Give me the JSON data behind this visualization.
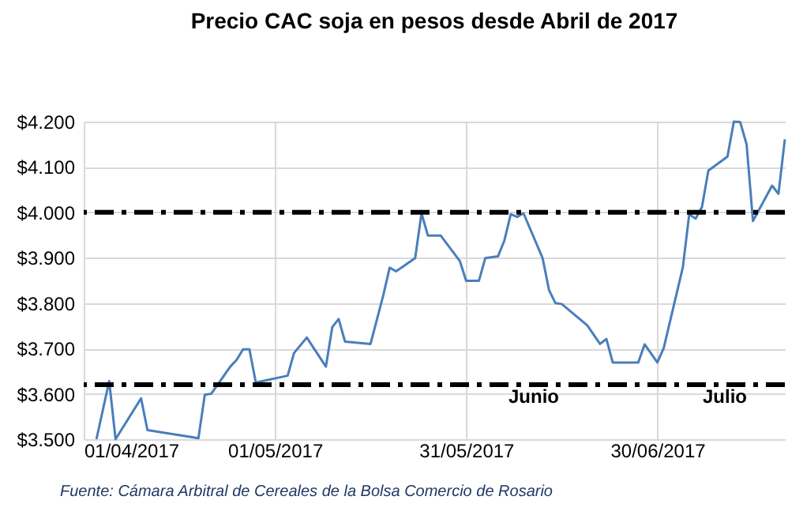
{
  "chart_data": {
    "type": "line",
    "title": "Precio CAC soja en pesos desde Abril de 2017",
    "x": [
      "2017-04-03",
      "2017-04-05",
      "2017-04-06",
      "2017-04-10",
      "2017-04-11",
      "2017-04-19",
      "2017-04-20",
      "2017-04-21",
      "2017-04-24",
      "2017-04-25",
      "2017-04-26",
      "2017-04-27",
      "2017-04-28",
      "2017-05-03",
      "2017-05-04",
      "2017-05-06",
      "2017-05-09",
      "2017-05-10",
      "2017-05-11",
      "2017-05-12",
      "2017-05-16",
      "2017-05-18",
      "2017-05-19",
      "2017-05-20",
      "2017-05-23",
      "2017-05-24",
      "2017-05-25",
      "2017-05-27",
      "2017-05-30",
      "2017-05-31",
      "2017-06-02",
      "2017-06-03",
      "2017-06-05",
      "2017-06-06",
      "2017-06-07",
      "2017-06-08",
      "2017-06-09",
      "2017-06-12",
      "2017-06-13",
      "2017-06-14",
      "2017-06-15",
      "2017-06-19",
      "2017-06-21",
      "2017-06-22",
      "2017-06-23",
      "2017-06-27",
      "2017-06-28",
      "2017-06-30",
      "2017-07-01",
      "2017-07-04",
      "2017-07-05",
      "2017-07-06",
      "2017-07-07",
      "2017-07-08",
      "2017-07-11",
      "2017-07-12",
      "2017-07-13",
      "2017-07-14",
      "2017-07-15",
      "2017-07-18",
      "2017-07-19",
      "2017-07-20"
    ],
    "series": [
      {
        "color": "#4a7ebb",
        "values": [
          3500,
          3628,
          3500,
          3590,
          3520,
          3502,
          3598,
          3600,
          3660,
          3675,
          3698,
          3698,
          3625,
          3640,
          3690,
          3724,
          3660,
          3747,
          3765,
          3715,
          3710,
          3817,
          3878,
          3870,
          3899,
          3998,
          3949,
          3949,
          3893,
          3849,
          3849,
          3899,
          3903,
          3938,
          3996,
          3990,
          3998,
          3899,
          3829,
          3800,
          3798,
          3751,
          3710,
          3721,
          3669,
          3669,
          3709,
          3669,
          3701,
          3879,
          3996,
          3986,
          4012,
          4092,
          4123,
          4200,
          4199,
          4150,
          3981,
          4059,
          4041,
          4161
        ]
      }
    ],
    "xlim": [
      "2017-04-01",
      "2017-07-20"
    ],
    "xticks": [
      {
        "value": "2017-04-01",
        "label": "01/04/2017"
      },
      {
        "value": "2017-05-01",
        "label": "01/05/2017"
      },
      {
        "value": "2017-05-31",
        "label": "31/05/2017"
      },
      {
        "value": "2017-06-30",
        "label": "30/06/2017"
      }
    ],
    "ylim": [
      3500,
      4200
    ],
    "yticks": [
      {
        "value": 3500,
        "label": "$3.500"
      },
      {
        "value": 3600,
        "label": "$3.600"
      },
      {
        "value": 3700,
        "label": "$3.700"
      },
      {
        "value": 3800,
        "label": "$3.800"
      },
      {
        "value": 3900,
        "label": "$3.900"
      },
      {
        "value": 4000,
        "label": "$4.000"
      },
      {
        "value": 4100,
        "label": "$4.100"
      },
      {
        "value": 4200,
        "label": "$4.200"
      }
    ],
    "grid": true,
    "line_style": "solid",
    "ref_lines": [
      {
        "axis": "y",
        "value": 4000,
        "color": "#000000",
        "line_style": "dashed"
      },
      {
        "axis": "y",
        "value": 3620,
        "color": "#000000",
        "line_style": "dashed"
      }
    ],
    "annotations": [
      "Junio",
      "Julio",
      "Fuente: Cámara Arbitral de Cereales de la Bolsa Comercio de Rosario"
    ]
  }
}
